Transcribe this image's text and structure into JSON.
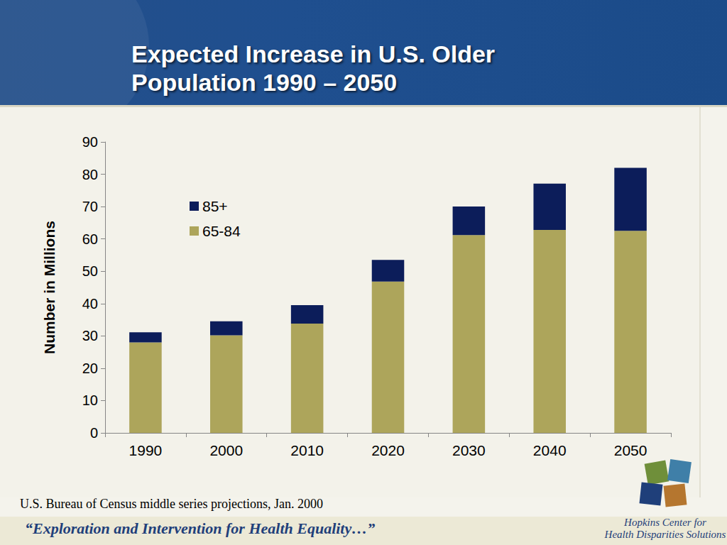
{
  "chart_data": {
    "type": "bar",
    "title": "Expected Increase in U.S. Older Population 1990 – 2050",
    "y_label": "Number in Millions",
    "categories": [
      "1990",
      "2000",
      "2010",
      "2020",
      "2030",
      "2040",
      "2050"
    ],
    "series": [
      {
        "name": "65-84",
        "color": "#ada55b",
        "values": [
          28.0,
          30.2,
          33.8,
          46.8,
          61.2,
          62.8,
          62.5
        ]
      },
      {
        "name": "85+",
        "color": "#0c1d5a",
        "values": [
          3.1,
          4.3,
          5.7,
          6.7,
          8.8,
          14.3,
          19.5
        ]
      }
    ],
    "stacked": true,
    "ylim": [
      0,
      90
    ],
    "yticks": [
      0,
      10,
      20,
      30,
      40,
      50,
      60,
      70,
      80,
      90
    ],
    "grid": false,
    "legend": "upper left"
  },
  "source": "U.S. Bureau of Census middle series projections, Jan. 2000",
  "footer": "“Exploration and Intervention for Health Equality…”",
  "logo_text": [
    "Hopkins Center for",
    "Health Disparities Solutions"
  ]
}
